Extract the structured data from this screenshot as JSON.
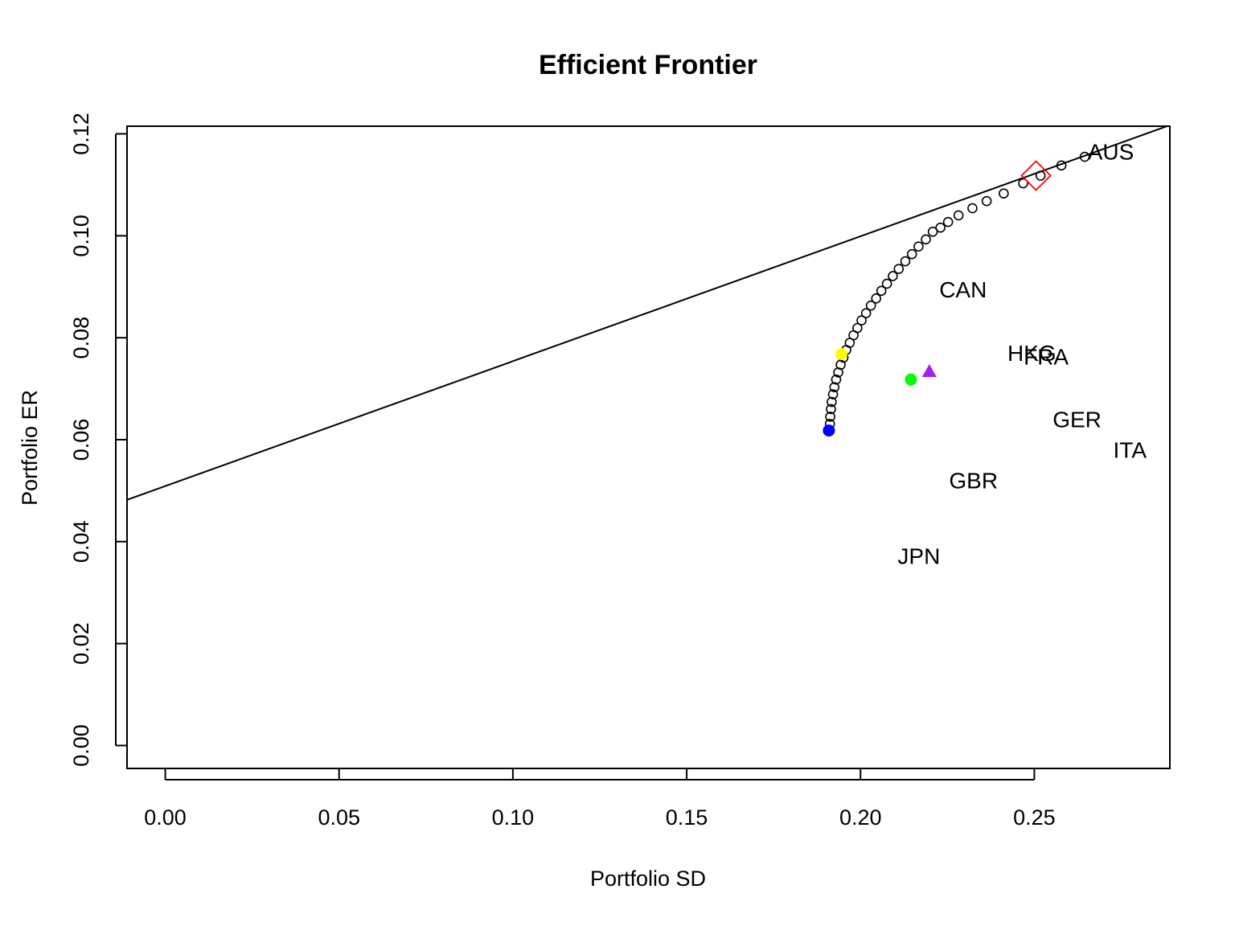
{
  "chart_data": {
    "type": "scatter",
    "title": "Efficient Frontier",
    "xlabel": "Portfolio SD",
    "ylabel": "Portfolio ER",
    "xlim": [
      -0.011,
      0.289
    ],
    "ylim": [
      -0.0045,
      0.1215
    ],
    "x_ticks": [
      "0.00",
      "0.05",
      "0.10",
      "0.15",
      "0.20",
      "0.25"
    ],
    "y_ticks": [
      "0.00",
      "0.02",
      "0.04",
      "0.06",
      "0.08",
      "0.10",
      "0.12"
    ],
    "grid": false,
    "legend": "none",
    "assets": [
      {
        "label": "AUS",
        "sd": 0.272,
        "er": 0.1165
      },
      {
        "label": "CAN",
        "sd": 0.2295,
        "er": 0.0895
      },
      {
        "label": "HKG",
        "sd": 0.2493,
        "er": 0.077
      },
      {
        "label": "FRA",
        "sd": 0.2534,
        "er": 0.0763
      },
      {
        "label": "GER",
        "sd": 0.2623,
        "er": 0.064
      },
      {
        "label": "ITA",
        "sd": 0.2775,
        "er": 0.058
      },
      {
        "label": "GBR",
        "sd": 0.2325,
        "er": 0.052
      },
      {
        "label": "JPN",
        "sd": 0.2168,
        "er": 0.0372
      }
    ],
    "frontier": {
      "sd": [
        0.1912,
        0.1913,
        0.1915,
        0.1917,
        0.1921,
        0.1925,
        0.193,
        0.1936,
        0.1943,
        0.1951,
        0.1959,
        0.1969,
        0.198,
        0.1991,
        0.2003,
        0.2016,
        0.203,
        0.2045,
        0.206,
        0.2076,
        0.2093,
        0.211,
        0.2129,
        0.2148,
        0.2167,
        0.2188,
        0.2208,
        0.223,
        0.2252,
        0.2282,
        0.2322,
        0.2363,
        0.2412,
        0.2468,
        0.2518,
        0.2578,
        0.2645
      ],
      "er": [
        0.0631,
        0.0645,
        0.066,
        0.0674,
        0.0689,
        0.0703,
        0.0718,
        0.0732,
        0.0747,
        0.0761,
        0.0776,
        0.079,
        0.0805,
        0.0819,
        0.0834,
        0.0848,
        0.0863,
        0.0877,
        0.0892,
        0.0906,
        0.0921,
        0.0935,
        0.095,
        0.0964,
        0.0979,
        0.0993,
        0.1008,
        0.1016,
        0.1027,
        0.104,
        0.1054,
        0.1068,
        0.1083,
        0.1103,
        0.1118,
        0.1138,
        0.1155
      ],
      "color": "#000000"
    },
    "capital_market_line": {
      "intercept": 0.0509,
      "slope": 0.245,
      "color": "#000000"
    },
    "special_points": [
      {
        "name": "global-min-variance",
        "shape": "circle",
        "sd": 0.1909,
        "er": 0.0618,
        "color": "#0000ff"
      },
      {
        "name": "yellow-portfolio",
        "shape": "circle",
        "sd": 0.1945,
        "er": 0.0768,
        "color": "#ffff00"
      },
      {
        "name": "green-portfolio",
        "shape": "circle",
        "sd": 0.2145,
        "er": 0.0718,
        "color": "#00ff00"
      },
      {
        "name": "purple-portfolio",
        "shape": "triangle",
        "sd": 0.2198,
        "er": 0.0734,
        "color": "#a020f0"
      },
      {
        "name": "tangency-portfolio",
        "shape": "diamond",
        "sd": 0.2505,
        "er": 0.1118,
        "color": "#ff0000"
      }
    ]
  }
}
